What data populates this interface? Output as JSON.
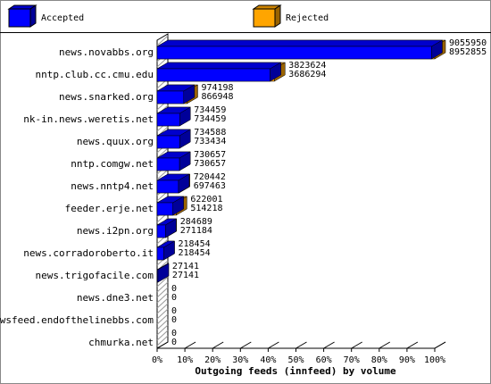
{
  "chart_data": {
    "type": "bar3d",
    "title": "Outgoing feeds (innfeed) by volume",
    "categories": [
      "news.novabbs.org",
      "nntp.club.cc.cmu.edu",
      "news.snarked.org",
      "nk-in.news.weretis.net",
      "news.quux.org",
      "nntp.comgw.net",
      "news.nntp4.net",
      "feeder.erje.net",
      "news.i2pn.org",
      "news.corradoroberto.it",
      "news.trigofacile.com",
      "news.dne3.net",
      "newsfeed.endofthelinebbs.com",
      "chmurka.net"
    ],
    "series": [
      {
        "name": "Rejected",
        "color": "#ffa500",
        "values": [
          9055950,
          3823624,
          974198,
          734459,
          734588,
          730657,
          720442,
          622001,
          284689,
          218454,
          27141,
          0,
          0,
          0
        ]
      },
      {
        "name": "Accepted",
        "color": "#0000ff",
        "values": [
          8952855,
          3686294,
          866948,
          734459,
          733434,
          730657,
          697463,
          514218,
          271184,
          218454,
          27141,
          0,
          0,
          0
        ]
      }
    ],
    "legend_order": [
      1,
      0
    ],
    "xlim": [
      0,
      9055950
    ],
    "xticks": [
      {
        "value": 0,
        "label": "0%"
      },
      {
        "value": 905595,
        "label": "10%"
      },
      {
        "value": 1811190,
        "label": "20%"
      },
      {
        "value": 2716785,
        "label": "30%"
      },
      {
        "value": 3622380,
        "label": "40%"
      },
      {
        "value": 4527975,
        "label": "50%"
      },
      {
        "value": 5433570,
        "label": "60%"
      },
      {
        "value": 6339165,
        "label": "70%"
      },
      {
        "value": 7244760,
        "label": "80%"
      },
      {
        "value": 8150355,
        "label": "90%"
      },
      {
        "value": 9055950,
        "label": "100%"
      }
    ]
  }
}
